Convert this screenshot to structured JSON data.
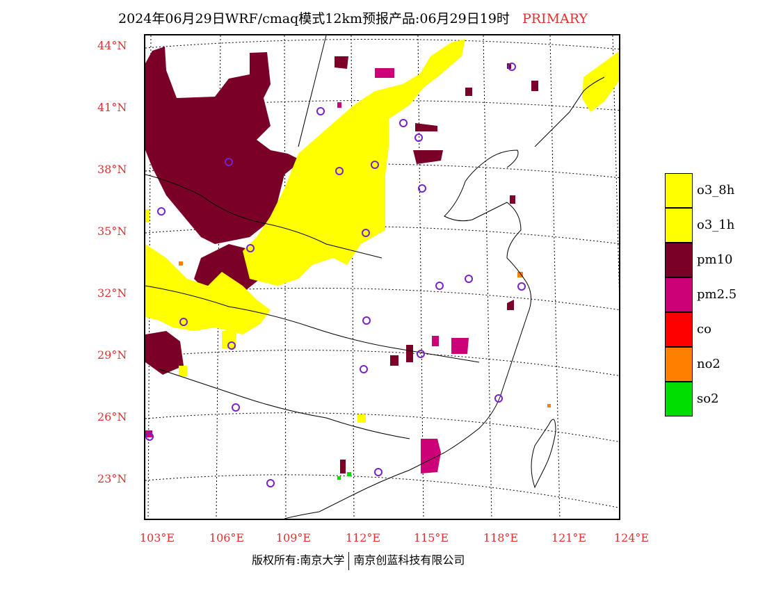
{
  "title": {
    "main": "2024年06月29日WRF/cmaq模式12km预报产品:06月29日19时",
    "tag": "PRIMARY"
  },
  "axes": {
    "latitudes": [
      "44°N",
      "41°N",
      "38°N",
      "35°N",
      "32°N",
      "29°N",
      "26°N",
      "23°N"
    ],
    "longitudes": [
      "103°E",
      "106°E",
      "109°E",
      "112°E",
      "115°E",
      "118°E",
      "121°E",
      "124°E"
    ]
  },
  "legend": [
    {
      "label": "o3_8h",
      "color": "#ffff00"
    },
    {
      "label": "o3_1h",
      "color": "#ffff00"
    },
    {
      "label": "pm10",
      "color": "#7a0028"
    },
    {
      "label": "pm2.5",
      "color": "#cc0077"
    },
    {
      "label": "co",
      "color": "#ff0000"
    },
    {
      "label": "no2",
      "color": "#ff8000"
    },
    {
      "label": "so2",
      "color": "#00dd00"
    }
  ],
  "footer": {
    "copyright": "版权所有:南京大学",
    "company": "南京创蓝科技有限公司"
  }
}
